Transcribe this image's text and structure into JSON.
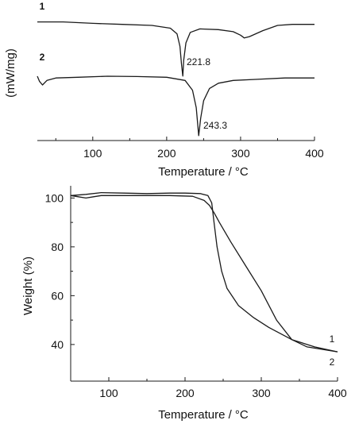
{
  "chart_data": [
    {
      "type": "line",
      "xlabel": "Temperature / °C",
      "ylabel": "(mW/mg)",
      "xlim": [
        25,
        400
      ],
      "x_ticks": [
        "100",
        "200",
        "300",
        "400"
      ],
      "grid": false,
      "series": [
        {
          "name": "1",
          "x": [
            25,
            60,
            100,
            140,
            180,
            205,
            214,
            218,
            220,
            221.8,
            223,
            226,
            232,
            245,
            270,
            290,
            300,
            305,
            312,
            330,
            350,
            370,
            400
          ],
          "y": [
            1,
            1,
            0.6,
            0.3,
            0,
            -0.8,
            -2.4,
            -6,
            -11,
            -14.5,
            -10,
            -5,
            -2,
            -1,
            -1.2,
            -1.8,
            -2.8,
            -3.6,
            -3.2,
            -1.5,
            0,
            0.3,
            0.3
          ]
        },
        {
          "name": "2",
          "x": [
            25,
            28,
            32,
            38,
            50,
            80,
            120,
            160,
            200,
            225,
            235,
            240,
            243.3,
            246,
            250,
            258,
            270,
            290,
            320,
            360,
            400
          ],
          "y": [
            0,
            -1.5,
            -2.5,
            -1.2,
            -0.5,
            -0.3,
            0,
            -0.1,
            -0.3,
            -1.2,
            -4,
            -9,
            -17,
            -12,
            -7,
            -3.5,
            -2,
            -1.2,
            -0.9,
            -0.5,
            -0.5
          ]
        }
      ],
      "annotations": [
        "221.8",
        "243.3"
      ]
    },
    {
      "type": "line",
      "xlabel": "Temperature / °C",
      "ylabel": "Weight (%)",
      "xlim": [
        50,
        400
      ],
      "ylim": [
        25,
        105
      ],
      "x_ticks": [
        "100",
        "200",
        "300",
        "400"
      ],
      "y_ticks": [
        "40",
        "60",
        "80",
        "100"
      ],
      "grid": false,
      "series": [
        {
          "name": "1",
          "x": [
            50,
            60,
            70,
            80,
            90,
            100,
            120,
            150,
            180,
            210,
            225,
            232,
            238,
            245,
            260,
            280,
            300,
            320,
            340,
            360,
            380,
            400
          ],
          "y": [
            101,
            100.5,
            100,
            100.5,
            101,
            101,
            101,
            101,
            101,
            100.7,
            99,
            97,
            94,
            90,
            82,
            72,
            62,
            50,
            42,
            39,
            38,
            37
          ]
        },
        {
          "name": "2",
          "x": [
            50,
            70,
            90,
            120,
            150,
            180,
            200,
            220,
            230,
            235,
            238,
            242,
            248,
            255,
            270,
            290,
            310,
            340,
            370,
            400
          ],
          "y": [
            101,
            101.5,
            102.2,
            102,
            101.8,
            102,
            102,
            101.8,
            101,
            98,
            90,
            80,
            70,
            63,
            56,
            51,
            47,
            42,
            39,
            37
          ]
        }
      ]
    }
  ]
}
